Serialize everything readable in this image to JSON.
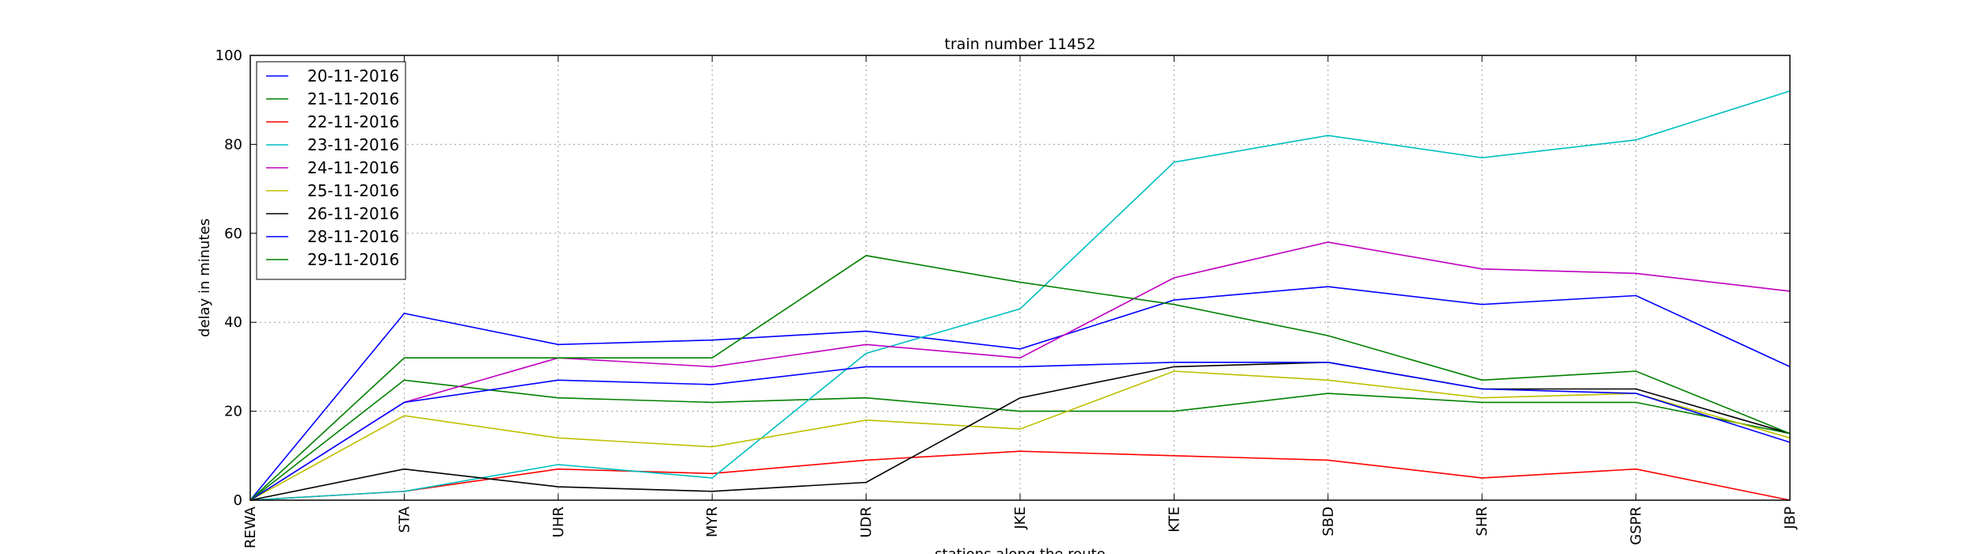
{
  "chart_data": {
    "type": "line",
    "title": "train number 11452",
    "xlabel": "stations along the route",
    "ylabel": "delay in minutes",
    "ylim": [
      0,
      100
    ],
    "yticks": [
      "0",
      "20",
      "40",
      "60",
      "80",
      "100"
    ],
    "grid": true,
    "legend_position": "top-left",
    "categories": [
      "REWA",
      "STA",
      "UHR",
      "MYR",
      "UDR",
      "JKE",
      "KTE",
      "SBD",
      "SHR",
      "GSPR",
      "JBP"
    ],
    "series": [
      {
        "name": "20-11-2016",
        "color": "#0000ff",
        "values": [
          0,
          42,
          35,
          36,
          38,
          34,
          45,
          48,
          44,
          46,
          30
        ]
      },
      {
        "name": "21-11-2016",
        "color": "#008000",
        "values": [
          0,
          27,
          23,
          22,
          23,
          20,
          20,
          24,
          22,
          22,
          15
        ]
      },
      {
        "name": "22-11-2016",
        "color": "#ff0000",
        "values": [
          0,
          2,
          7,
          6,
          9,
          11,
          10,
          9,
          5,
          7,
          0
        ]
      },
      {
        "name": "23-11-2016",
        "color": "#00bfbf",
        "values": [
          0,
          2,
          8,
          5,
          33,
          43,
          76,
          82,
          77,
          81,
          92
        ]
      },
      {
        "name": "24-11-2016",
        "color": "#bf00bf",
        "values": [
          0,
          22,
          32,
          30,
          35,
          32,
          50,
          58,
          52,
          51,
          47
        ]
      },
      {
        "name": "25-11-2016",
        "color": "#bfbf00",
        "values": [
          0,
          19,
          14,
          12,
          18,
          16,
          29,
          27,
          23,
          24,
          14
        ]
      },
      {
        "name": "26-11-2016",
        "color": "#000000",
        "values": [
          0,
          7,
          3,
          2,
          4,
          23,
          30,
          31,
          25,
          25,
          15
        ]
      },
      {
        "name": "28-11-2016",
        "color": "#0000ff",
        "values": [
          0,
          22,
          27,
          26,
          30,
          30,
          31,
          31,
          25,
          24,
          13
        ]
      },
      {
        "name": "29-11-2016",
        "color": "#008000",
        "values": [
          0,
          32,
          32,
          32,
          55,
          49,
          44,
          37,
          27,
          29,
          15
        ]
      }
    ]
  }
}
